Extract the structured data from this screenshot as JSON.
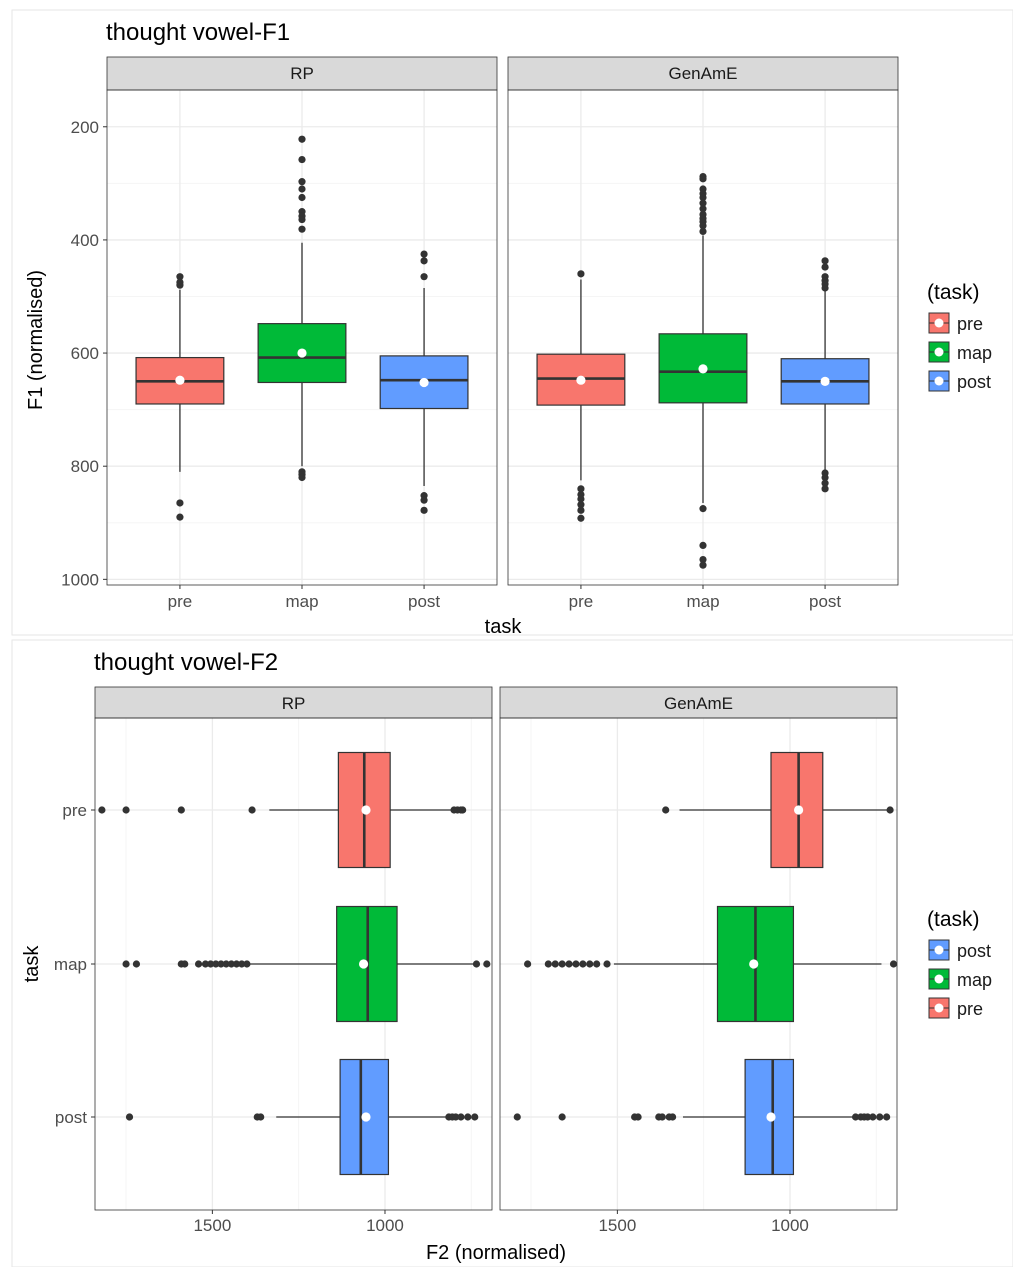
{
  "colors": {
    "pre": "#F8766D",
    "map": "#00BA38",
    "post": "#619CFF",
    "panel_bg": "#FFFFFF",
    "strip_bg": "#D9D9D9",
    "grid_major": "#EBEBEB",
    "grid_minor": "#F5F5F5",
    "outlier": "#333333",
    "mean_marker": "#FFFFFF"
  },
  "chart_data": [
    {
      "type": "boxplot",
      "title": "thought vowel-F1",
      "xlabel": "task",
      "ylabel": "F1 (normalised)",
      "y_reversed": true,
      "ylim": [
        1010,
        135
      ],
      "yticks": [
        200,
        400,
        600,
        800,
        1000
      ],
      "categories": [
        "pre",
        "map",
        "post"
      ],
      "grid": true,
      "legend": {
        "title": "(task)",
        "position": "right",
        "entries": [
          {
            "label": "pre",
            "color": "#F8766D"
          },
          {
            "label": "map",
            "color": "#00BA38"
          },
          {
            "label": "post",
            "color": "#619CFF"
          }
        ]
      },
      "facets": [
        {
          "name": "RP",
          "boxes": [
            {
              "task": "pre",
              "whisker_low": 488,
              "q1": 608,
              "median": 650,
              "q3": 690,
              "whisker_high": 810,
              "mean": 648,
              "outliers": [
                465,
                475,
                480,
                865,
                890
              ]
            },
            {
              "task": "map",
              "whisker_low": 405,
              "q1": 548,
              "median": 608,
              "q3": 652,
              "whisker_high": 800,
              "mean": 600,
              "outliers": [
                222,
                258,
                297,
                310,
                325,
                350,
                358,
                364,
                381,
                810,
                815,
                820
              ]
            },
            {
              "task": "post",
              "whisker_low": 485,
              "q1": 605,
              "median": 648,
              "q3": 698,
              "whisker_high": 835,
              "mean": 652,
              "outliers": [
                425,
                437,
                465,
                852,
                860,
                878
              ]
            }
          ]
        },
        {
          "name": "GenAmE",
          "boxes": [
            {
              "task": "pre",
              "whisker_low": 470,
              "q1": 602,
              "median": 645,
              "q3": 692,
              "whisker_high": 825,
              "mean": 648,
              "outliers": [
                460,
                840,
                850,
                858,
                868,
                878,
                892
              ]
            },
            {
              "task": "map",
              "whisker_low": 392,
              "q1": 566,
              "median": 633,
              "q3": 688,
              "whisker_high": 865,
              "mean": 628,
              "outliers": [
                288,
                292,
                310,
                318,
                325,
                335,
                345,
                355,
                362,
                368,
                375,
                385,
                875,
                940,
                965,
                975
              ]
            },
            {
              "task": "post",
              "whisker_low": 490,
              "q1": 610,
              "median": 650,
              "q3": 690,
              "whisker_high": 810,
              "mean": 650,
              "outliers": [
                437,
                448,
                465,
                472,
                478,
                485,
                812,
                820,
                830,
                840
              ]
            }
          ]
        }
      ]
    },
    {
      "type": "boxplot",
      "orientation": "horizontal",
      "title": "thought vowel-F2",
      "xlabel": "F2 (normalised)",
      "ylabel": "task",
      "x_reversed": true,
      "xlim": [
        1840,
        690
      ],
      "xticks": [
        1500,
        1000
      ],
      "categories": [
        "pre",
        "map",
        "post"
      ],
      "grid": true,
      "legend": {
        "title": "(task)",
        "position": "right",
        "entries": [
          {
            "label": "post",
            "color": "#619CFF"
          },
          {
            "label": "map",
            "color": "#00BA38"
          },
          {
            "label": "pre",
            "color": "#F8766D"
          }
        ]
      },
      "facets": [
        {
          "name": "RP",
          "boxes": [
            {
              "task": "pre",
              "whisker_low": 790,
              "q1": 985,
              "median": 1060,
              "q3": 1135,
              "whisker_high": 1335,
              "mean": 1055,
              "outliers": [
                1820,
                1750,
                1590,
                1385,
                800,
                790,
                780,
                775
              ]
            },
            {
              "task": "map",
              "whisker_low": 745,
              "q1": 965,
              "median": 1050,
              "q3": 1140,
              "whisker_high": 1400,
              "mean": 1062,
              "outliers": [
                1750,
                1720,
                1590,
                1580,
                1540,
                1520,
                1505,
                1490,
                1475,
                1460,
                1445,
                1430,
                1415,
                1400,
                735,
                705
              ]
            },
            {
              "task": "post",
              "whisker_low": 805,
              "q1": 990,
              "median": 1070,
              "q3": 1130,
              "whisker_high": 1315,
              "mean": 1055,
              "outliers": [
                1740,
                1370,
                1360,
                815,
                805,
                795,
                780,
                760,
                740
              ]
            }
          ]
        },
        {
          "name": "GenAmE",
          "boxes": [
            {
              "task": "pre",
              "whisker_low": 710,
              "q1": 905,
              "median": 975,
              "q3": 1055,
              "whisker_high": 1320,
              "mean": 975,
              "outliers": [
                1360,
                710
              ]
            },
            {
              "task": "map",
              "whisker_low": 735,
              "q1": 990,
              "median": 1100,
              "q3": 1210,
              "whisker_high": 1510,
              "mean": 1105,
              "outliers": [
                1760,
                1700,
                1680,
                1660,
                1640,
                1620,
                1600,
                1580,
                1560,
                1530,
                700
              ]
            },
            {
              "task": "post",
              "whisker_low": 805,
              "q1": 990,
              "median": 1050,
              "q3": 1130,
              "whisker_high": 1310,
              "mean": 1055,
              "outliers": [
                1790,
                1660,
                1450,
                1440,
                1380,
                1370,
                1350,
                1340,
                810,
                795,
                785,
                775,
                760,
                740,
                720
              ]
            }
          ]
        }
      ]
    }
  ]
}
